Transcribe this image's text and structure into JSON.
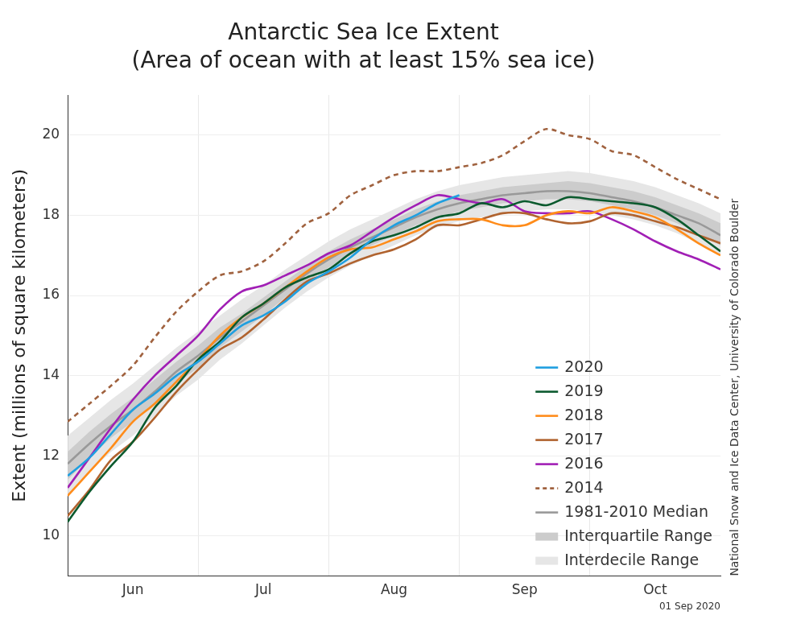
{
  "chart_data": {
    "type": "line",
    "title": "Antarctic Sea Ice Extent",
    "subtitle": "(Area of ocean with at least 15% sea ice)",
    "y_label": "Extent (millions of square kilometers)",
    "annotations": [
      "National Snow and Ice Data Center, University of Colorado Boulder",
      "01 Sep 2020"
    ],
    "categories": [
      null,
      null,
      null,
      "Jun",
      null,
      null,
      null,
      null,
      null,
      "Jul",
      null,
      null,
      null,
      null,
      null,
      "Aug",
      null,
      null,
      null,
      null,
      null,
      "Sep",
      null,
      null,
      null,
      null,
      null,
      "Oct",
      null,
      null,
      null
    ],
    "ylim": [
      9,
      21
    ],
    "yticks": [
      10,
      12,
      14,
      16,
      18,
      20
    ],
    "grid": true,
    "legend": "lower right",
    "series": [
      {
        "name": "2020",
        "color": "#1f9fe0",
        "values": [
          11.5,
          11.95,
          12.55,
          13.15,
          13.55,
          14.0,
          14.35,
          14.8,
          15.25,
          15.5,
          15.85,
          16.3,
          16.6,
          16.95,
          17.4,
          17.75,
          18.0,
          18.3,
          18.5,
          null,
          null,
          null,
          null,
          null,
          null,
          null,
          null,
          null,
          null,
          null,
          null
        ]
      },
      {
        "name": "2019",
        "color": "#0b5a2e",
        "values": [
          10.35,
          11.1,
          11.75,
          12.35,
          13.2,
          13.75,
          14.4,
          14.85,
          15.45,
          15.8,
          16.2,
          16.45,
          16.65,
          17.05,
          17.35,
          17.5,
          17.7,
          17.95,
          18.05,
          18.3,
          18.2,
          18.35,
          18.25,
          18.45,
          18.4,
          18.35,
          18.3,
          18.2,
          17.9,
          17.5,
          17.1
        ]
      },
      {
        "name": "2018",
        "color": "#ff8c1a",
        "values": [
          11.0,
          11.6,
          12.2,
          12.85,
          13.3,
          13.85,
          14.4,
          15.0,
          15.45,
          15.8,
          16.2,
          16.6,
          16.95,
          17.15,
          17.2,
          17.4,
          17.6,
          17.85,
          17.9,
          17.9,
          17.75,
          17.75,
          18.0,
          18.1,
          18.05,
          18.2,
          18.1,
          17.95,
          17.65,
          17.3,
          17.0
        ]
      },
      {
        "name": "2017",
        "color": "#b0632f",
        "values": [
          10.5,
          11.15,
          11.9,
          12.35,
          12.95,
          13.6,
          14.15,
          14.65,
          14.95,
          15.4,
          15.9,
          16.35,
          16.55,
          16.8,
          17.0,
          17.15,
          17.4,
          17.75,
          17.75,
          17.9,
          18.05,
          18.05,
          17.9,
          17.8,
          17.85,
          18.05,
          18.0,
          17.85,
          17.7,
          17.5,
          17.3
        ]
      },
      {
        "name": "2016",
        "color": "#a11fb5",
        "values": [
          11.2,
          11.95,
          12.7,
          13.4,
          14.0,
          14.5,
          15.0,
          15.65,
          16.1,
          16.25,
          16.5,
          16.75,
          17.05,
          17.25,
          17.6,
          17.95,
          18.25,
          18.5,
          18.4,
          18.3,
          18.4,
          18.1,
          18.05,
          18.05,
          18.1,
          17.9,
          17.65,
          17.35,
          17.1,
          16.9,
          16.65
        ]
      },
      {
        "name": "2014",
        "color": "#a0623f",
        "line_style": "dashed",
        "values": [
          12.85,
          13.3,
          13.75,
          14.25,
          14.95,
          15.6,
          16.1,
          16.5,
          16.6,
          16.85,
          17.3,
          17.8,
          18.05,
          18.5,
          18.75,
          19.0,
          19.1,
          19.1,
          19.2,
          19.3,
          19.5,
          19.85,
          20.15,
          20.0,
          19.9,
          19.6,
          19.5,
          19.2,
          18.9,
          18.65,
          18.4
        ]
      },
      {
        "name": "1981-2010 Median",
        "color": "#999999",
        "values": [
          11.8,
          12.3,
          12.75,
          13.15,
          13.6,
          14.1,
          14.5,
          14.95,
          15.35,
          15.75,
          16.15,
          16.55,
          16.9,
          17.2,
          17.45,
          17.7,
          17.95,
          18.15,
          18.3,
          18.4,
          18.5,
          18.55,
          18.6,
          18.6,
          18.55,
          18.45,
          18.35,
          18.2,
          18.0,
          17.8,
          17.5
        ]
      },
      {
        "name": "Interquartile Range",
        "color": "#cccccc",
        "type": "band",
        "lower": [
          11.4,
          11.95,
          12.45,
          12.85,
          13.3,
          13.8,
          14.2,
          14.7,
          15.1,
          15.5,
          15.95,
          16.35,
          16.7,
          17.0,
          17.25,
          17.5,
          17.75,
          17.95,
          18.1,
          18.2,
          18.3,
          18.35,
          18.4,
          18.4,
          18.35,
          18.25,
          18.15,
          18.0,
          17.8,
          17.55,
          17.25
        ],
        "upper": [
          12.1,
          12.6,
          13.05,
          13.45,
          13.9,
          14.35,
          14.75,
          15.2,
          15.55,
          15.95,
          16.35,
          16.75,
          17.1,
          17.4,
          17.65,
          17.9,
          18.15,
          18.35,
          18.5,
          18.6,
          18.7,
          18.75,
          18.8,
          18.85,
          18.8,
          18.7,
          18.6,
          18.45,
          18.25,
          18.05,
          17.8
        ]
      },
      {
        "name": "Interdecile Range",
        "color": "#e6e6e6",
        "type": "band",
        "lower": [
          11.0,
          11.6,
          12.1,
          12.5,
          13.0,
          13.5,
          13.9,
          14.4,
          14.8,
          15.25,
          15.7,
          16.1,
          16.45,
          16.75,
          17.0,
          17.25,
          17.5,
          17.7,
          17.85,
          17.95,
          18.05,
          18.1,
          18.15,
          18.15,
          18.1,
          18.0,
          17.9,
          17.75,
          17.55,
          17.3,
          17.0
        ],
        "upper": [
          12.5,
          12.95,
          13.4,
          13.8,
          14.25,
          14.7,
          15.1,
          15.5,
          15.9,
          16.25,
          16.65,
          17.0,
          17.35,
          17.65,
          17.9,
          18.15,
          18.4,
          18.6,
          18.75,
          18.85,
          18.95,
          19.0,
          19.05,
          19.1,
          19.05,
          18.95,
          18.85,
          18.7,
          18.5,
          18.3,
          18.05
        ]
      }
    ]
  }
}
